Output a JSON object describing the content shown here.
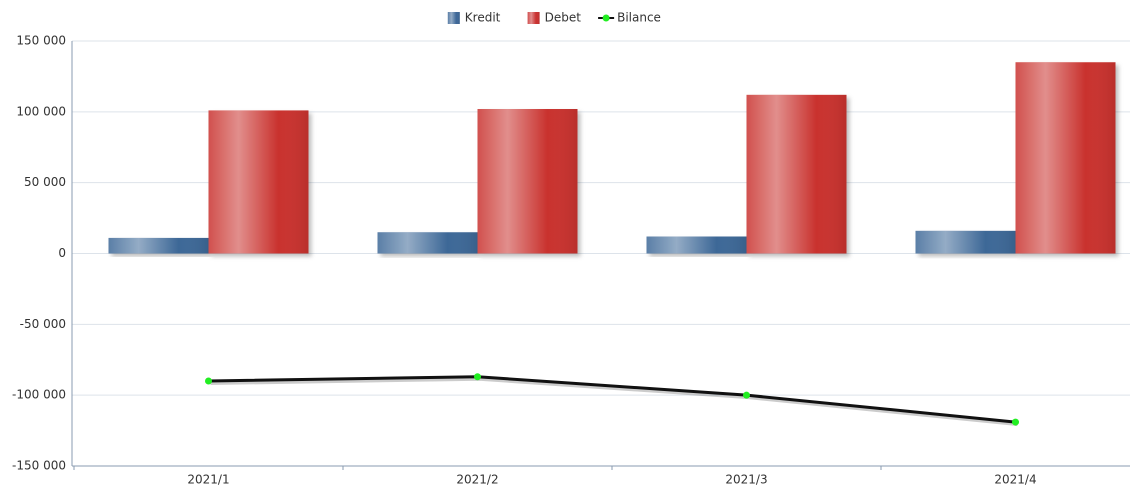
{
  "chart_data": {
    "type": "bar_line",
    "categories": [
      "2021/1",
      "2021/2",
      "2021/3",
      "2021/4"
    ],
    "series": [
      {
        "name": "Kredit",
        "type": "bar",
        "color": "#3d6797",
        "values": [
          11000,
          15000,
          12000,
          16000
        ]
      },
      {
        "name": "Debet",
        "type": "bar",
        "color": "#c9302f",
        "values": [
          101000,
          102000,
          112000,
          135000
        ]
      },
      {
        "name": "Bilance",
        "type": "line",
        "color": "#111111",
        "marker_color": "#22ee22",
        "values": [
          -90000,
          -87000,
          -100000,
          -119000
        ]
      }
    ],
    "ylim": [
      -150000,
      150000
    ],
    "yticks": [
      {
        "value": -150000,
        "label": "-150 000"
      },
      {
        "value": -100000,
        "label": "-100 000"
      },
      {
        "value": -50000,
        "label": "-50 000"
      },
      0,
      {
        "value": 50000,
        "label": "50 000"
      },
      {
        "value": 100000,
        "label": "100 000"
      },
      {
        "value": 150000,
        "label": "150 000"
      }
    ],
    "grid": true,
    "legend": "top"
  }
}
